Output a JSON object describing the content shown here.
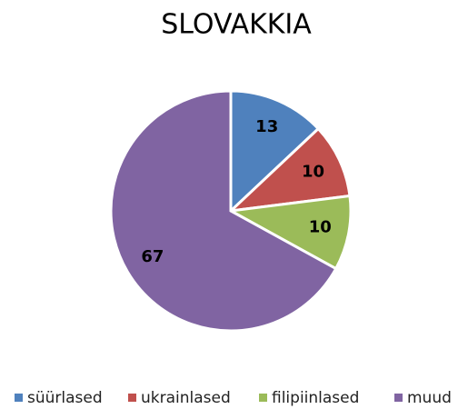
{
  "chart_data": {
    "type": "pie",
    "title": "SLOVAKKIA",
    "categories": [
      "süürlased",
      "ukrainlased",
      "filipiinlased",
      "muud"
    ],
    "values": [
      13,
      10,
      10,
      67
    ],
    "colors": [
      "#4f81bd",
      "#c0504d",
      "#9bbb59",
      "#8064a2"
    ],
    "legend": "bottom"
  }
}
